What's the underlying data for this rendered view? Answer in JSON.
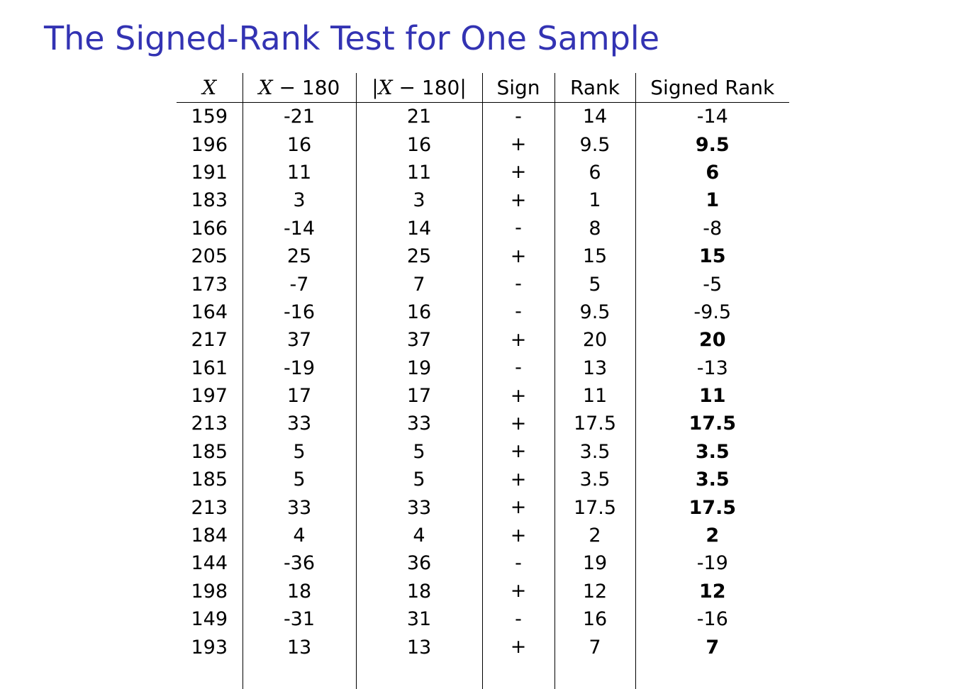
{
  "slide": {
    "title": "The Signed-Rank Test for One Sample",
    "accent_color": "#3333b3"
  },
  "table": {
    "headers": {
      "x": "X",
      "diff_var": "X",
      "diff_op": "−",
      "diff_num": "180",
      "abs_bar_left": "|",
      "abs_var": "X",
      "abs_op": "−",
      "abs_num": "180",
      "abs_bar_right": "|",
      "sign": "Sign",
      "rank": "Rank",
      "signed_rank": "Signed Rank"
    },
    "rows": [
      {
        "x": "159",
        "diff": "-21",
        "abs_diff": "21",
        "sign": "-",
        "rank": "14",
        "signed_rank": "-14",
        "positive": false
      },
      {
        "x": "196",
        "diff": "16",
        "abs_diff": "16",
        "sign": "+",
        "rank": "9.5",
        "signed_rank": "9.5",
        "positive": true
      },
      {
        "x": "191",
        "diff": "11",
        "abs_diff": "11",
        "sign": "+",
        "rank": "6",
        "signed_rank": "6",
        "positive": true
      },
      {
        "x": "183",
        "diff": "3",
        "abs_diff": "3",
        "sign": "+",
        "rank": "1",
        "signed_rank": "1",
        "positive": true
      },
      {
        "x": "166",
        "diff": "-14",
        "abs_diff": "14",
        "sign": "-",
        "rank": "8",
        "signed_rank": "-8",
        "positive": false
      },
      {
        "x": "205",
        "diff": "25",
        "abs_diff": "25",
        "sign": "+",
        "rank": "15",
        "signed_rank": "15",
        "positive": true
      },
      {
        "x": "173",
        "diff": "-7",
        "abs_diff": "7",
        "sign": "-",
        "rank": "5",
        "signed_rank": "-5",
        "positive": false
      },
      {
        "x": "164",
        "diff": "-16",
        "abs_diff": "16",
        "sign": "-",
        "rank": "9.5",
        "signed_rank": "-9.5",
        "positive": false
      },
      {
        "x": "217",
        "diff": "37",
        "abs_diff": "37",
        "sign": "+",
        "rank": "20",
        "signed_rank": "20",
        "positive": true
      },
      {
        "x": "161",
        "diff": "-19",
        "abs_diff": "19",
        "sign": "-",
        "rank": "13",
        "signed_rank": "-13",
        "positive": false
      },
      {
        "x": "197",
        "diff": "17",
        "abs_diff": "17",
        "sign": "+",
        "rank": "11",
        "signed_rank": "11",
        "positive": true
      },
      {
        "x": "213",
        "diff": "33",
        "abs_diff": "33",
        "sign": "+",
        "rank": "17.5",
        "signed_rank": "17.5",
        "positive": true
      },
      {
        "x": "185",
        "diff": "5",
        "abs_diff": "5",
        "sign": "+",
        "rank": "3.5",
        "signed_rank": "3.5",
        "positive": true
      },
      {
        "x": "185",
        "diff": "5",
        "abs_diff": "5",
        "sign": "+",
        "rank": "3.5",
        "signed_rank": "3.5",
        "positive": true
      },
      {
        "x": "213",
        "diff": "33",
        "abs_diff": "33",
        "sign": "+",
        "rank": "17.5",
        "signed_rank": "17.5",
        "positive": true
      },
      {
        "x": "184",
        "diff": "4",
        "abs_diff": "4",
        "sign": "+",
        "rank": "2",
        "signed_rank": "2",
        "positive": true
      },
      {
        "x": "144",
        "diff": "-36",
        "abs_diff": "36",
        "sign": "-",
        "rank": "19",
        "signed_rank": "-19",
        "positive": false
      },
      {
        "x": "198",
        "diff": "18",
        "abs_diff": "18",
        "sign": "+",
        "rank": "12",
        "signed_rank": "12",
        "positive": true
      },
      {
        "x": "149",
        "diff": "-31",
        "abs_diff": "31",
        "sign": "-",
        "rank": "16",
        "signed_rank": "-16",
        "positive": false
      },
      {
        "x": "193",
        "diff": "13",
        "abs_diff": "13",
        "sign": "+",
        "rank": "7",
        "signed_rank": "7",
        "positive": true
      }
    ]
  }
}
